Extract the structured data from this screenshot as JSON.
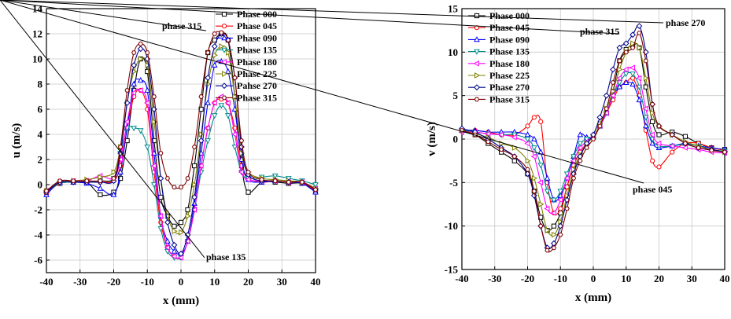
{
  "chart_data": [
    {
      "type": "line",
      "xlabel": "x (mm)",
      "ylabel": "u (m/s)",
      "xlim": [
        -40,
        40
      ],
      "ylim": [
        -7,
        14
      ],
      "xticks": [
        "-40",
        "-30",
        "-20",
        "-10",
        "0",
        "10",
        "20",
        "30",
        "40"
      ],
      "yticks": [
        "-6",
        "-4",
        "-2",
        "0",
        "2",
        "4",
        "6",
        "8",
        "10",
        "12",
        "14"
      ],
      "grid": true,
      "legend_position": "top-right",
      "x": [
        -40,
        -36,
        -32,
        -28,
        -24,
        -20,
        -18,
        -16,
        -14,
        -12,
        -10,
        -8,
        -6,
        -4,
        -2,
        0,
        2,
        4,
        6,
        8,
        10,
        12,
        14,
        16,
        18,
        20,
        24,
        28,
        32,
        36,
        40
      ],
      "series": [
        {
          "name": "Phase 000",
          "color": "#000000",
          "marker": "square",
          "values": [
            -0.6,
            0.1,
            0.2,
            0.2,
            -0.8,
            -0.6,
            0.5,
            3.5,
            7.5,
            10.0,
            9.0,
            3.5,
            -1.0,
            -2.5,
            -3.3,
            -3.0,
            -2.0,
            1.5,
            6.0,
            10.5,
            11.5,
            12.0,
            11.5,
            7.0,
            1.5,
            -0.6,
            0.2,
            0.2,
            0.1,
            0.1,
            -0.5
          ]
        },
        {
          "name": "Phase 045",
          "color": "#ff0000",
          "marker": "circle",
          "values": [
            -0.7,
            0.1,
            0.2,
            0.2,
            0.2,
            0.3,
            1.5,
            4.5,
            7.0,
            7.5,
            6.0,
            1.0,
            -3.0,
            -5.0,
            -5.7,
            -5.8,
            -4.5,
            -2.0,
            1.5,
            4.5,
            6.5,
            6.8,
            6.5,
            4.5,
            1.5,
            0.5,
            0.2,
            0.3,
            0.2,
            0.2,
            -0.5
          ]
        },
        {
          "name": "Phase 090",
          "color": "#0000ff",
          "marker": "triangle-up",
          "values": [
            -0.8,
            0.2,
            0.2,
            0.1,
            -0.3,
            -0.8,
            1.0,
            4.5,
            8.0,
            8.3,
            7.5,
            2.5,
            -2.5,
            -4.5,
            -5.3,
            -5.5,
            -4.5,
            -1.5,
            2.5,
            6.5,
            9.5,
            9.8,
            9.0,
            6.0,
            2.0,
            0.4,
            0.2,
            0.3,
            0.2,
            0.1,
            -0.6
          ]
        },
        {
          "name": "Phase 135",
          "color": "#008b8b",
          "marker": "triangle-down",
          "values": [
            -0.6,
            0.1,
            0.2,
            0.2,
            0.3,
            0.5,
            2.5,
            4.5,
            4.5,
            4.3,
            3.0,
            0.0,
            -3.5,
            -5.3,
            -5.8,
            -5.8,
            -4.5,
            -2.0,
            1.0,
            3.5,
            5.5,
            6.3,
            5.5,
            3.0,
            1.0,
            0.5,
            0.6,
            0.7,
            0.5,
            0.3,
            0.0
          ]
        },
        {
          "name": "Phase 180",
          "color": "#ff00ff",
          "marker": "triangle-left",
          "values": [
            -0.5,
            0.2,
            0.3,
            0.3,
            0.7,
            0.5,
            2.0,
            5.0,
            7.3,
            7.5,
            6.5,
            1.5,
            -2.5,
            -5.0,
            -5.7,
            -5.8,
            -4.5,
            -2.0,
            1.5,
            4.5,
            6.5,
            7.0,
            6.5,
            4.0,
            1.0,
            0.4,
            0.3,
            0.3,
            0.2,
            0.2,
            -0.3
          ]
        },
        {
          "name": "Phase 225",
          "color": "#808000",
          "marker": "triangle-right",
          "values": [
            -0.5,
            0.2,
            0.3,
            0.4,
            0.6,
            1.0,
            3.0,
            6.5,
            9.0,
            10.0,
            9.5,
            5.0,
            0.5,
            -2.5,
            -3.7,
            -3.8,
            -2.5,
            0.0,
            4.0,
            8.0,
            10.3,
            11.0,
            10.5,
            7.0,
            2.5,
            1.0,
            0.5,
            0.4,
            0.3,
            0.2,
            -0.3
          ]
        },
        {
          "name": "Pahse 270",
          "color": "#00008b",
          "marker": "diamond",
          "values": [
            -0.6,
            0.2,
            0.2,
            0.2,
            0.2,
            0.3,
            2.5,
            6.5,
            9.5,
            10.8,
            10.0,
            6.0,
            0.5,
            -3.0,
            -4.8,
            -5.5,
            -4.0,
            -1.0,
            3.5,
            8.5,
            11.0,
            12.0,
            11.5,
            8.5,
            3.0,
            0.8,
            0.3,
            0.3,
            0.2,
            0.2,
            -0.4
          ]
        },
        {
          "name": "Phase 315",
          "color": "#800000",
          "marker": "hexagon",
          "values": [
            -0.5,
            0.3,
            0.3,
            0.3,
            0.3,
            0.5,
            3.0,
            7.5,
            10.5,
            11.2,
            10.5,
            7.0,
            2.5,
            0.5,
            -0.2,
            -0.2,
            0.5,
            3.0,
            7.0,
            10.5,
            12.0,
            12.1,
            11.5,
            8.5,
            3.5,
            1.0,
            0.4,
            0.3,
            0.2,
            0.2,
            -0.4
          ]
        }
      ],
      "annotations": [
        {
          "text": "phase 315",
          "x": 12,
          "y": 12.1
        },
        {
          "text": "phase 135",
          "x": 0,
          "y": -5.8
        }
      ]
    },
    {
      "type": "line",
      "xlabel": "x (mm)",
      "ylabel": "v (m/s)",
      "xlim": [
        -40,
        40
      ],
      "ylim": [
        -15,
        15
      ],
      "xticks": [
        "-40",
        "-30",
        "-20",
        "-10",
        "0",
        "10",
        "20",
        "30",
        "40"
      ],
      "yticks": [
        "-15",
        "-10",
        "-5",
        "0",
        "5",
        "10",
        "15"
      ],
      "grid": true,
      "legend_position": "top-left",
      "x": [
        -40,
        -36,
        -32,
        -28,
        -24,
        -20,
        -18,
        -16,
        -14,
        -12,
        -10,
        -8,
        -6,
        -4,
        -2,
        0,
        2,
        4,
        6,
        8,
        10,
        12,
        14,
        16,
        18,
        20,
        24,
        28,
        32,
        36,
        40
      ],
      "series": [
        {
          "name": "Phase 000",
          "color": "#000000",
          "marker": "square",
          "values": [
            1.0,
            0.5,
            -0.5,
            -1.5,
            -2.5,
            -4.0,
            -6.0,
            -9.0,
            -10.5,
            -10.0,
            -8.5,
            -5.5,
            -3.0,
            -1.5,
            -0.5,
            0.3,
            1.5,
            3.0,
            5.5,
            9.0,
            10.3,
            10.8,
            10.5,
            6.0,
            2.0,
            0.5,
            0.8,
            0.3,
            -0.5,
            -1.0,
            -1.2
          ]
        },
        {
          "name": "Phase 045",
          "color": "#ff0000",
          "marker": "circle",
          "values": [
            1.0,
            1.0,
            0.8,
            0.5,
            0.5,
            1.5,
            2.5,
            2.0,
            -5.0,
            -8.5,
            -8.0,
            -5.5,
            -3.0,
            -1.5,
            -0.5,
            0.3,
            1.5,
            3.0,
            4.5,
            6.0,
            6.5,
            7.0,
            5.0,
            1.0,
            -2.5,
            -3.2,
            -1.5,
            -0.5,
            -0.5,
            -1.0,
            -1.3
          ]
        },
        {
          "name": "Phase 090",
          "color": "#0000ff",
          "marker": "triangle-up",
          "values": [
            1.0,
            1.0,
            0.8,
            0.8,
            0.8,
            0.5,
            0.0,
            -1.5,
            -4.5,
            -7.0,
            -6.5,
            -4.5,
            -2.0,
            0.5,
            0.2,
            0.3,
            1.5,
            3.0,
            5.0,
            6.0,
            6.5,
            6.3,
            4.5,
            1.5,
            -0.5,
            -1.0,
            -0.8,
            -0.5,
            -0.8,
            -1.0,
            -1.2
          ]
        },
        {
          "name": "Phase 135",
          "color": "#008b8b",
          "marker": "triangle-down",
          "values": [
            1.0,
            0.8,
            0.6,
            0.5,
            0.5,
            0.0,
            -1.0,
            -3.0,
            -6.0,
            -7.0,
            -6.0,
            -4.0,
            -2.0,
            -0.5,
            0.0,
            0.3,
            1.5,
            3.0,
            5.0,
            6.5,
            7.5,
            7.5,
            6.0,
            2.5,
            0.0,
            -0.8,
            -0.8,
            -0.6,
            -0.8,
            -1.2,
            -1.4
          ]
        },
        {
          "name": "Phase 180",
          "color": "#ff00ff",
          "marker": "triangle-left",
          "values": [
            0.8,
            0.8,
            0.6,
            0.5,
            0.2,
            -0.5,
            -2.0,
            -5.0,
            -8.0,
            -8.5,
            -7.0,
            -4.5,
            -2.5,
            -1.0,
            -0.3,
            0.2,
            1.5,
            3.0,
            5.0,
            7.0,
            8.0,
            8.2,
            7.0,
            3.5,
            0.5,
            -0.5,
            -0.8,
            -1.0,
            -1.2,
            -1.5,
            -1.6
          ]
        },
        {
          "name": "Phase 225",
          "color": "#808000",
          "marker": "triangle-right",
          "values": [
            1.0,
            0.6,
            0.2,
            -0.5,
            -1.0,
            -2.5,
            -4.5,
            -7.5,
            -10.5,
            -11.0,
            -9.5,
            -6.5,
            -3.5,
            -1.8,
            -0.5,
            0.2,
            1.8,
            3.5,
            5.5,
            8.0,
            10.0,
            11.0,
            10.5,
            7.0,
            3.0,
            1.5,
            0.5,
            -0.3,
            -0.8,
            -1.2,
            -1.5
          ]
        },
        {
          "name": "Phase 270",
          "color": "#00008b",
          "marker": "diamond",
          "values": [
            1.2,
            0.8,
            0.0,
            -1.0,
            -2.0,
            -4.0,
            -6.5,
            -10.0,
            -12.5,
            -12.0,
            -10.0,
            -7.0,
            -4.0,
            -2.0,
            -0.5,
            0.5,
            2.5,
            5.0,
            8.0,
            10.5,
            11.0,
            12.0,
            13.0,
            10.0,
            4.0,
            1.5,
            0.5,
            -0.5,
            -1.0,
            -1.2,
            -1.5
          ]
        },
        {
          "name": "Phase 315",
          "color": "#800000",
          "marker": "hexagon",
          "values": [
            1.0,
            0.5,
            -0.3,
            -1.2,
            -2.0,
            -3.5,
            -6.0,
            -10.0,
            -12.8,
            -12.5,
            -11.0,
            -8.0,
            -4.5,
            -2.5,
            -1.0,
            0.0,
            1.5,
            3.5,
            6.5,
            9.0,
            10.0,
            10.5,
            12.2,
            9.0,
            4.0,
            1.5,
            0.5,
            -0.5,
            -1.0,
            -1.3,
            -1.5
          ]
        }
      ],
      "annotations": [
        {
          "text": "phase 315",
          "x": 15,
          "y": 12.2
        },
        {
          "text": "phase 270",
          "x": 16,
          "y": 13.0
        },
        {
          "text": "phase 045",
          "x": 20,
          "y": -3.2
        }
      ]
    }
  ]
}
